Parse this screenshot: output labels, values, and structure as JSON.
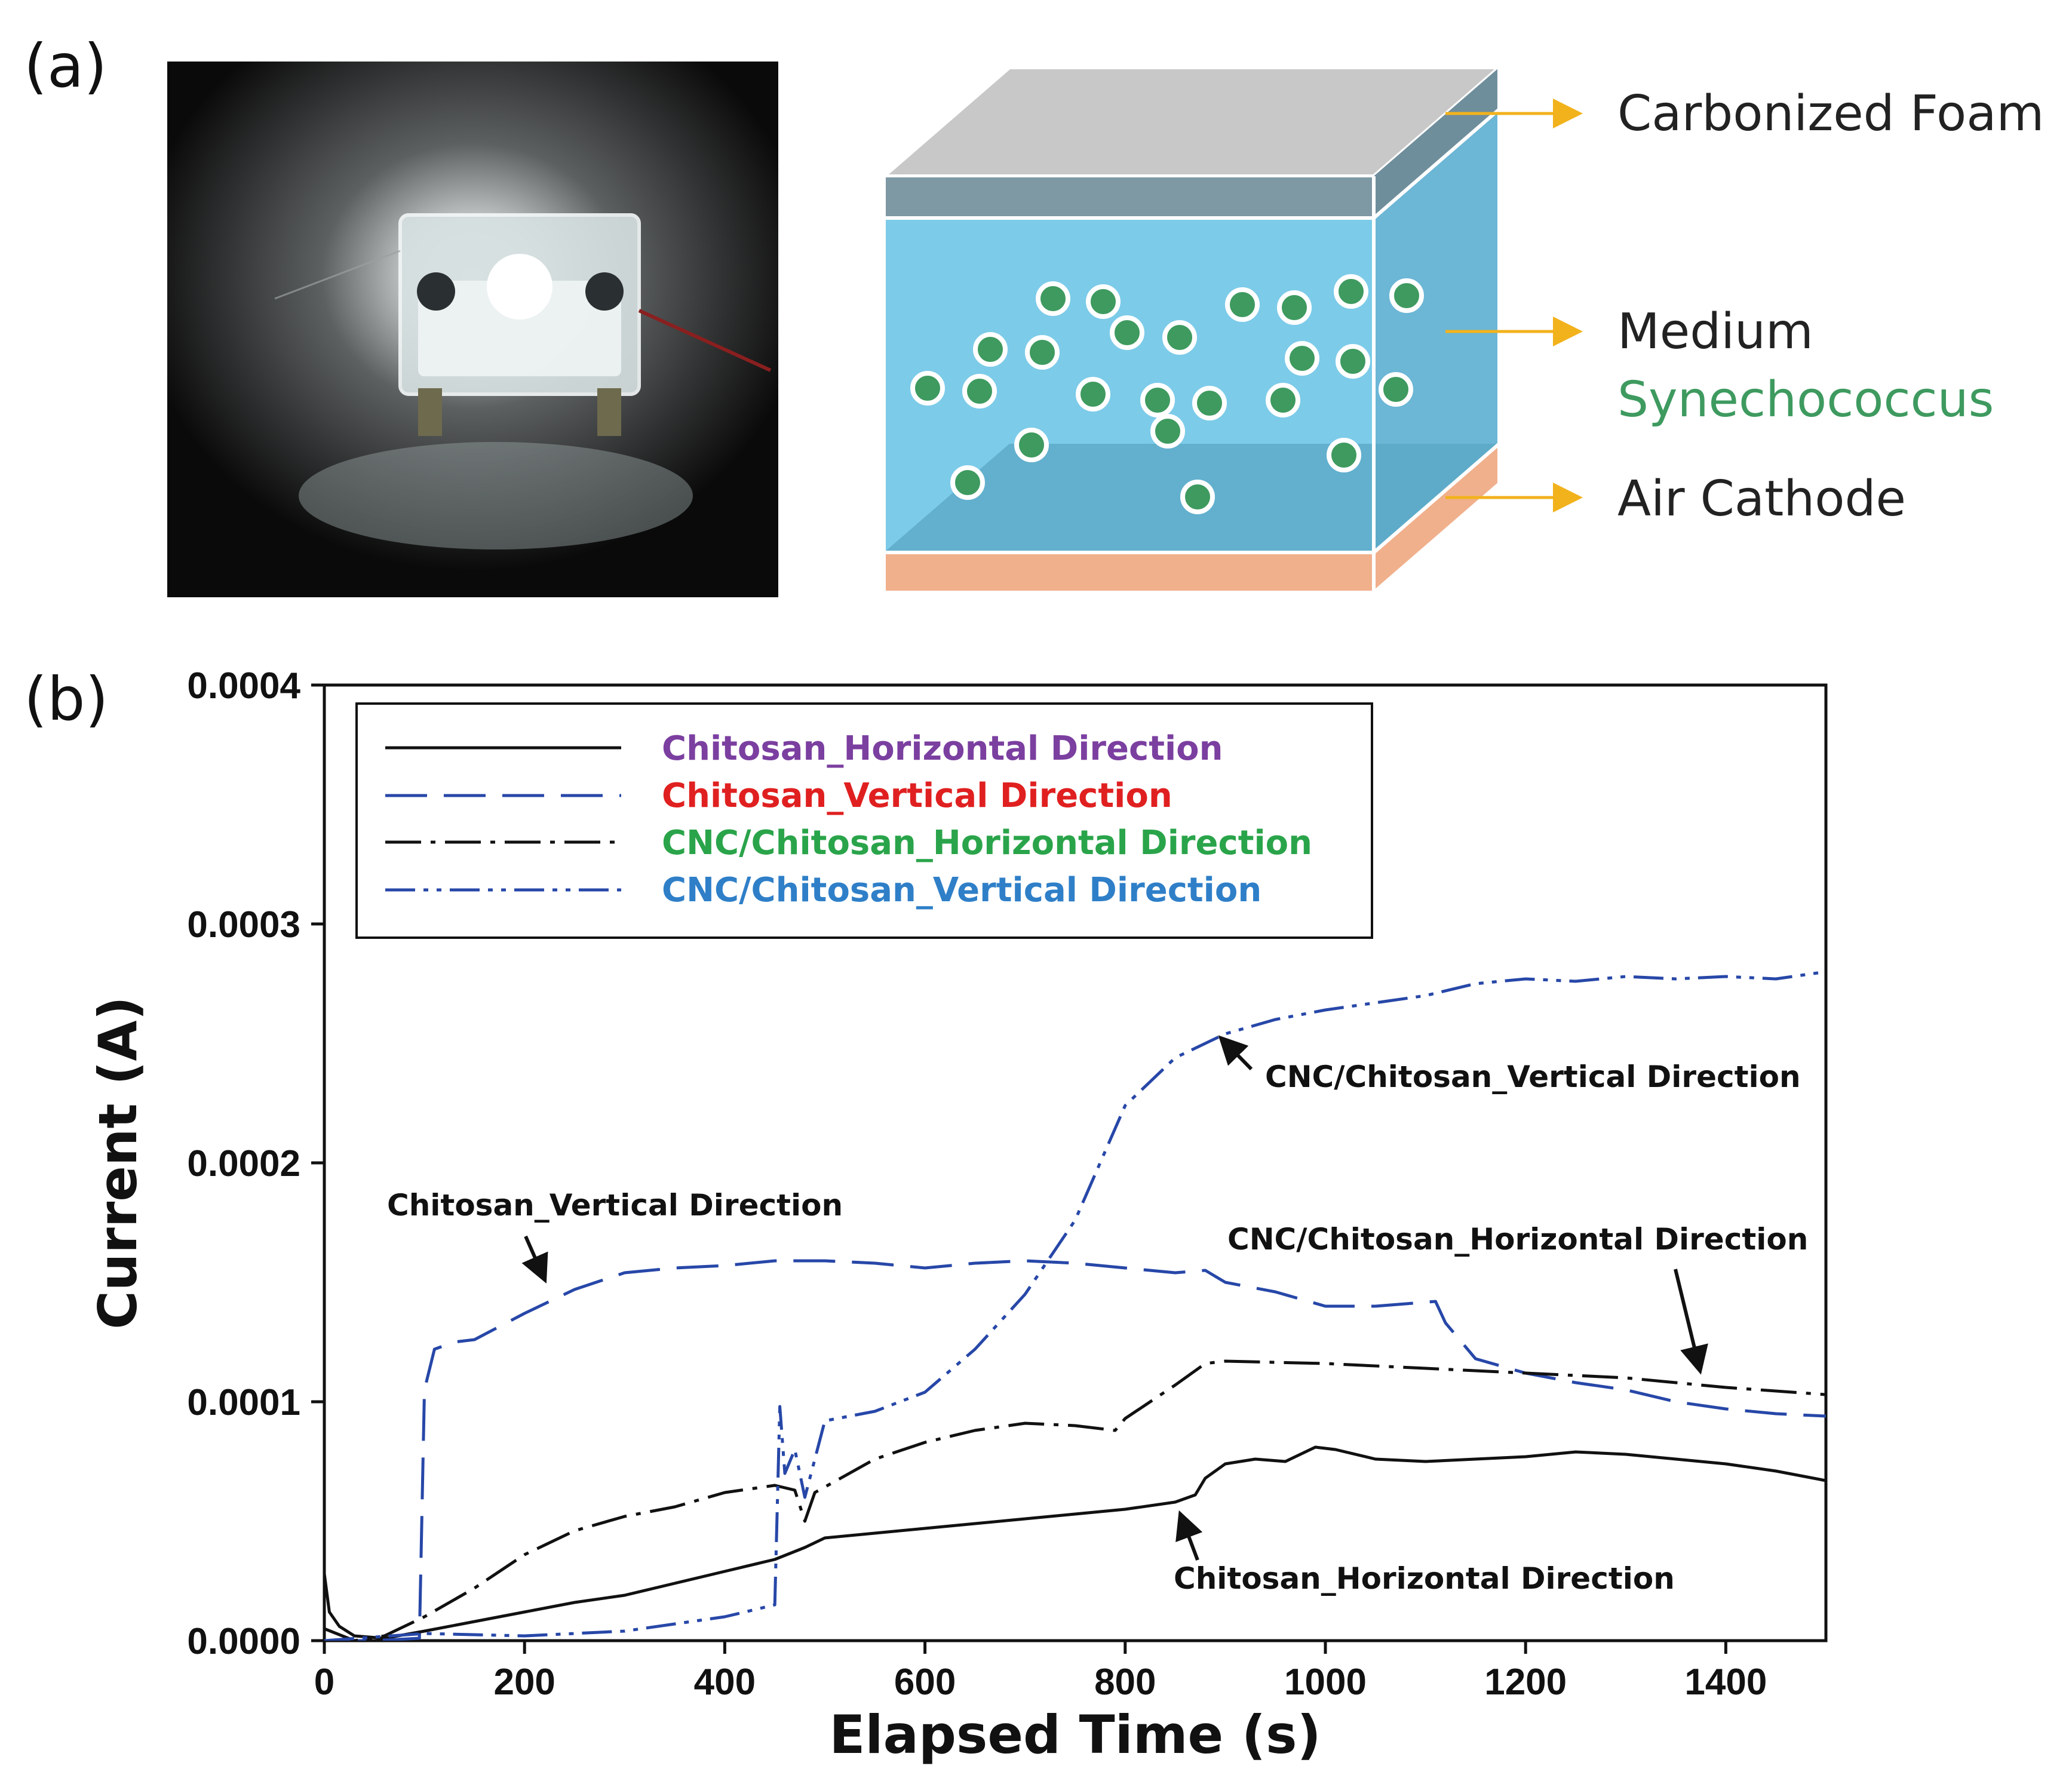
{
  "panels": {
    "a_label": "(a)",
    "b_label": "(b)"
  },
  "photo": {
    "description_icon": "device-photo-icon"
  },
  "schematic": {
    "labels": {
      "foam": "Carbonized Foam",
      "medium": "Medium",
      "organism": "Synechococcus",
      "cathode": "Air Cathode"
    },
    "colors": {
      "foam": "#b9b9b9",
      "medium": "#7ccbe9",
      "cathode": "#f0b08c",
      "cell": "#3e9a5f",
      "arrow": "#f2b21c",
      "organism_text": "#3e9a5f"
    }
  },
  "chart_data": {
    "type": "line",
    "title": "",
    "xlabel": "Elapsed Time (s)",
    "ylabel": "Current (A)",
    "xlim": [
      0,
      1500
    ],
    "ylim": [
      0,
      0.0004
    ],
    "xticks": [
      0,
      200,
      400,
      600,
      800,
      1000,
      1200,
      1400
    ],
    "yticks": [
      0.0,
      0.0001,
      0.0002,
      0.0003,
      0.0004
    ],
    "ytick_labels": [
      "0.0000",
      "0.0001",
      "0.0002",
      "0.0003",
      "0.0004"
    ],
    "legend": {
      "position": "top-left",
      "entries": [
        {
          "label": "Chitosan_Horizontal Direction",
          "color": "#7b3fa0",
          "style": "solid"
        },
        {
          "label": "Chitosan_Vertical Direction",
          "color": "#e02020",
          "style": "dashed"
        },
        {
          "label": "CNC/Chitosan_Horizontal Direction",
          "color": "#2aa44a",
          "style": "dash-dot"
        },
        {
          "label": "CNC/Chitosan_Vertical Direction",
          "color": "#2f7fc8",
          "style": "dash-dot-dot"
        }
      ]
    },
    "series": [
      {
        "name": "Chitosan_Horizontal Direction",
        "color": "#111111",
        "dash": "solid",
        "points": [
          [
            0,
            2.8e-05
          ],
          [
            5,
            1.2e-05
          ],
          [
            15,
            6e-06
          ],
          [
            30,
            2e-06
          ],
          [
            60,
            1e-06
          ],
          [
            100,
            4e-06
          ],
          [
            150,
            8e-06
          ],
          [
            200,
            1.2e-05
          ],
          [
            250,
            1.6e-05
          ],
          [
            300,
            1.9e-05
          ],
          [
            350,
            2.4e-05
          ],
          [
            400,
            2.9e-05
          ],
          [
            450,
            3.4e-05
          ],
          [
            480,
            3.9e-05
          ],
          [
            500,
            4.3e-05
          ],
          [
            550,
            4.5e-05
          ],
          [
            600,
            4.7e-05
          ],
          [
            650,
            4.9e-05
          ],
          [
            700,
            5.1e-05
          ],
          [
            750,
            5.3e-05
          ],
          [
            800,
            5.5e-05
          ],
          [
            850,
            5.8e-05
          ],
          [
            870,
            6.1e-05
          ],
          [
            880,
            6.8e-05
          ],
          [
            900,
            7.4e-05
          ],
          [
            930,
            7.6e-05
          ],
          [
            960,
            7.5e-05
          ],
          [
            990,
            8.1e-05
          ],
          [
            1010,
            8e-05
          ],
          [
            1050,
            7.6e-05
          ],
          [
            1100,
            7.5e-05
          ],
          [
            1150,
            7.6e-05
          ],
          [
            1200,
            7.7e-05
          ],
          [
            1250,
            7.9e-05
          ],
          [
            1300,
            7.8e-05
          ],
          [
            1350,
            7.6e-05
          ],
          [
            1400,
            7.4e-05
          ],
          [
            1450,
            7.1e-05
          ],
          [
            1500,
            6.7e-05
          ]
        ]
      },
      {
        "name": "Chitosan_Vertical Direction",
        "color": "#2747a8",
        "dash": "dashed",
        "points": [
          [
            0,
            0.0
          ],
          [
            50,
            0.0
          ],
          [
            95,
            1e-06
          ],
          [
            100,
            0.000105
          ],
          [
            110,
            0.000122
          ],
          [
            130,
            0.000125
          ],
          [
            150,
            0.000126
          ],
          [
            200,
            0.000137
          ],
          [
            250,
            0.000147
          ],
          [
            300,
            0.000154
          ],
          [
            350,
            0.000156
          ],
          [
            400,
            0.000157
          ],
          [
            450,
            0.000159
          ],
          [
            500,
            0.000159
          ],
          [
            550,
            0.000158
          ],
          [
            600,
            0.000156
          ],
          [
            650,
            0.000158
          ],
          [
            700,
            0.000159
          ],
          [
            750,
            0.000158
          ],
          [
            800,
            0.000156
          ],
          [
            850,
            0.000154
          ],
          [
            880,
            0.000155
          ],
          [
            900,
            0.00015
          ],
          [
            950,
            0.000146
          ],
          [
            1000,
            0.00014
          ],
          [
            1050,
            0.00014
          ],
          [
            1110,
            0.000142
          ],
          [
            1120,
            0.000133
          ],
          [
            1150,
            0.000118
          ],
          [
            1200,
            0.000112
          ],
          [
            1250,
            0.000108
          ],
          [
            1300,
            0.000105
          ],
          [
            1350,
            0.0001
          ],
          [
            1400,
            9.7e-05
          ],
          [
            1450,
            9.5e-05
          ],
          [
            1500,
            9.4e-05
          ]
        ]
      },
      {
        "name": "CNC/Chitosan_Horizontal Direction",
        "color": "#111111",
        "dash": "dash-dot",
        "points": [
          [
            0,
            5e-06
          ],
          [
            30,
            0.0
          ],
          [
            60,
            2e-06
          ],
          [
            100,
            1e-05
          ],
          [
            150,
            2.2e-05
          ],
          [
            200,
            3.6e-05
          ],
          [
            250,
            4.6e-05
          ],
          [
            300,
            5.2e-05
          ],
          [
            350,
            5.6e-05
          ],
          [
            400,
            6.2e-05
          ],
          [
            450,
            6.5e-05
          ],
          [
            470,
            6.3e-05
          ],
          [
            480,
            5e-05
          ],
          [
            490,
            6.2e-05
          ],
          [
            550,
            7.6e-05
          ],
          [
            600,
            8.3e-05
          ],
          [
            650,
            8.8e-05
          ],
          [
            700,
            9.1e-05
          ],
          [
            750,
            9e-05
          ],
          [
            790,
            8.8e-05
          ],
          [
            800,
            9.3e-05
          ],
          [
            850,
            0.000107
          ],
          [
            880,
            0.000116
          ],
          [
            900,
            0.000117
          ],
          [
            1000,
            0.000116
          ],
          [
            1100,
            0.000114
          ],
          [
            1200,
            0.000112
          ],
          [
            1300,
            0.00011
          ],
          [
            1400,
            0.000106
          ],
          [
            1500,
            0.000103
          ]
        ]
      },
      {
        "name": "CNC/Chitosan_Vertical Direction",
        "color": "#2747a8",
        "dash": "dash-dot-dot",
        "points": [
          [
            0,
            0.0
          ],
          [
            100,
            3e-06
          ],
          [
            200,
            2e-06
          ],
          [
            300,
            4e-06
          ],
          [
            400,
            1e-05
          ],
          [
            450,
            1.5e-05
          ],
          [
            455,
            9.8e-05
          ],
          [
            460,
            7e-05
          ],
          [
            470,
            8e-05
          ],
          [
            480,
            6e-05
          ],
          [
            500,
            9.2e-05
          ],
          [
            550,
            9.6e-05
          ],
          [
            600,
            0.000104
          ],
          [
            650,
            0.000122
          ],
          [
            700,
            0.000145
          ],
          [
            750,
            0.000176
          ],
          [
            800,
            0.000224
          ],
          [
            850,
            0.000244
          ],
          [
            900,
            0.000254
          ],
          [
            950,
            0.00026
          ],
          [
            1000,
            0.000264
          ],
          [
            1050,
            0.000267
          ],
          [
            1100,
            0.00027
          ],
          [
            1150,
            0.000275
          ],
          [
            1200,
            0.000277
          ],
          [
            1250,
            0.000276
          ],
          [
            1300,
            0.000278
          ],
          [
            1350,
            0.000277
          ],
          [
            1400,
            0.000278
          ],
          [
            1450,
            0.000277
          ],
          [
            1500,
            0.00028
          ]
        ]
      }
    ],
    "annotations": [
      {
        "text": "CNC/Chitosan_Vertical Direction",
        "target": [
          910,
          0.000254
        ]
      },
      {
        "text": "Chitosan_Vertical Direction",
        "target": [
          220,
          0.00015
        ]
      },
      {
        "text": "CNC/Chitosan_Horizontal Direction",
        "target": [
          1380,
          0.00011
        ]
      },
      {
        "text": "Chitosan_Horizontal Direction",
        "target": [
          860,
          6.7e-05
        ]
      }
    ]
  }
}
